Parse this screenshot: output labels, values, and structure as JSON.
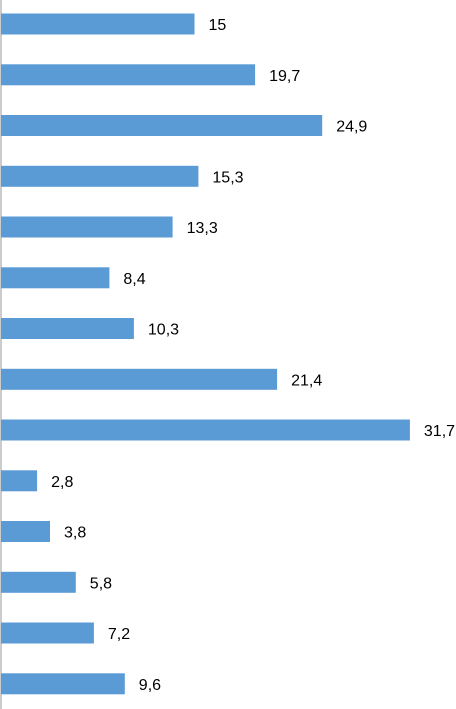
{
  "chart_data": {
    "type": "bar",
    "orientation": "horizontal",
    "values": [
      15,
      19.7,
      24.9,
      15.3,
      13.3,
      8.4,
      10.3,
      21.4,
      31.7,
      2.8,
      3.8,
      5.8,
      7.2,
      9.6
    ],
    "data_labels": [
      "15",
      "19,7",
      "24,9",
      "15,3",
      "13,3",
      "8,4",
      "10,3",
      "21,4",
      "31,7",
      "2,8",
      "3,8",
      "5,8",
      "7,2",
      "9,6"
    ],
    "bar_color": "#5B9BD5",
    "axis_color": "#999999",
    "grid": false,
    "legend": "none"
  }
}
